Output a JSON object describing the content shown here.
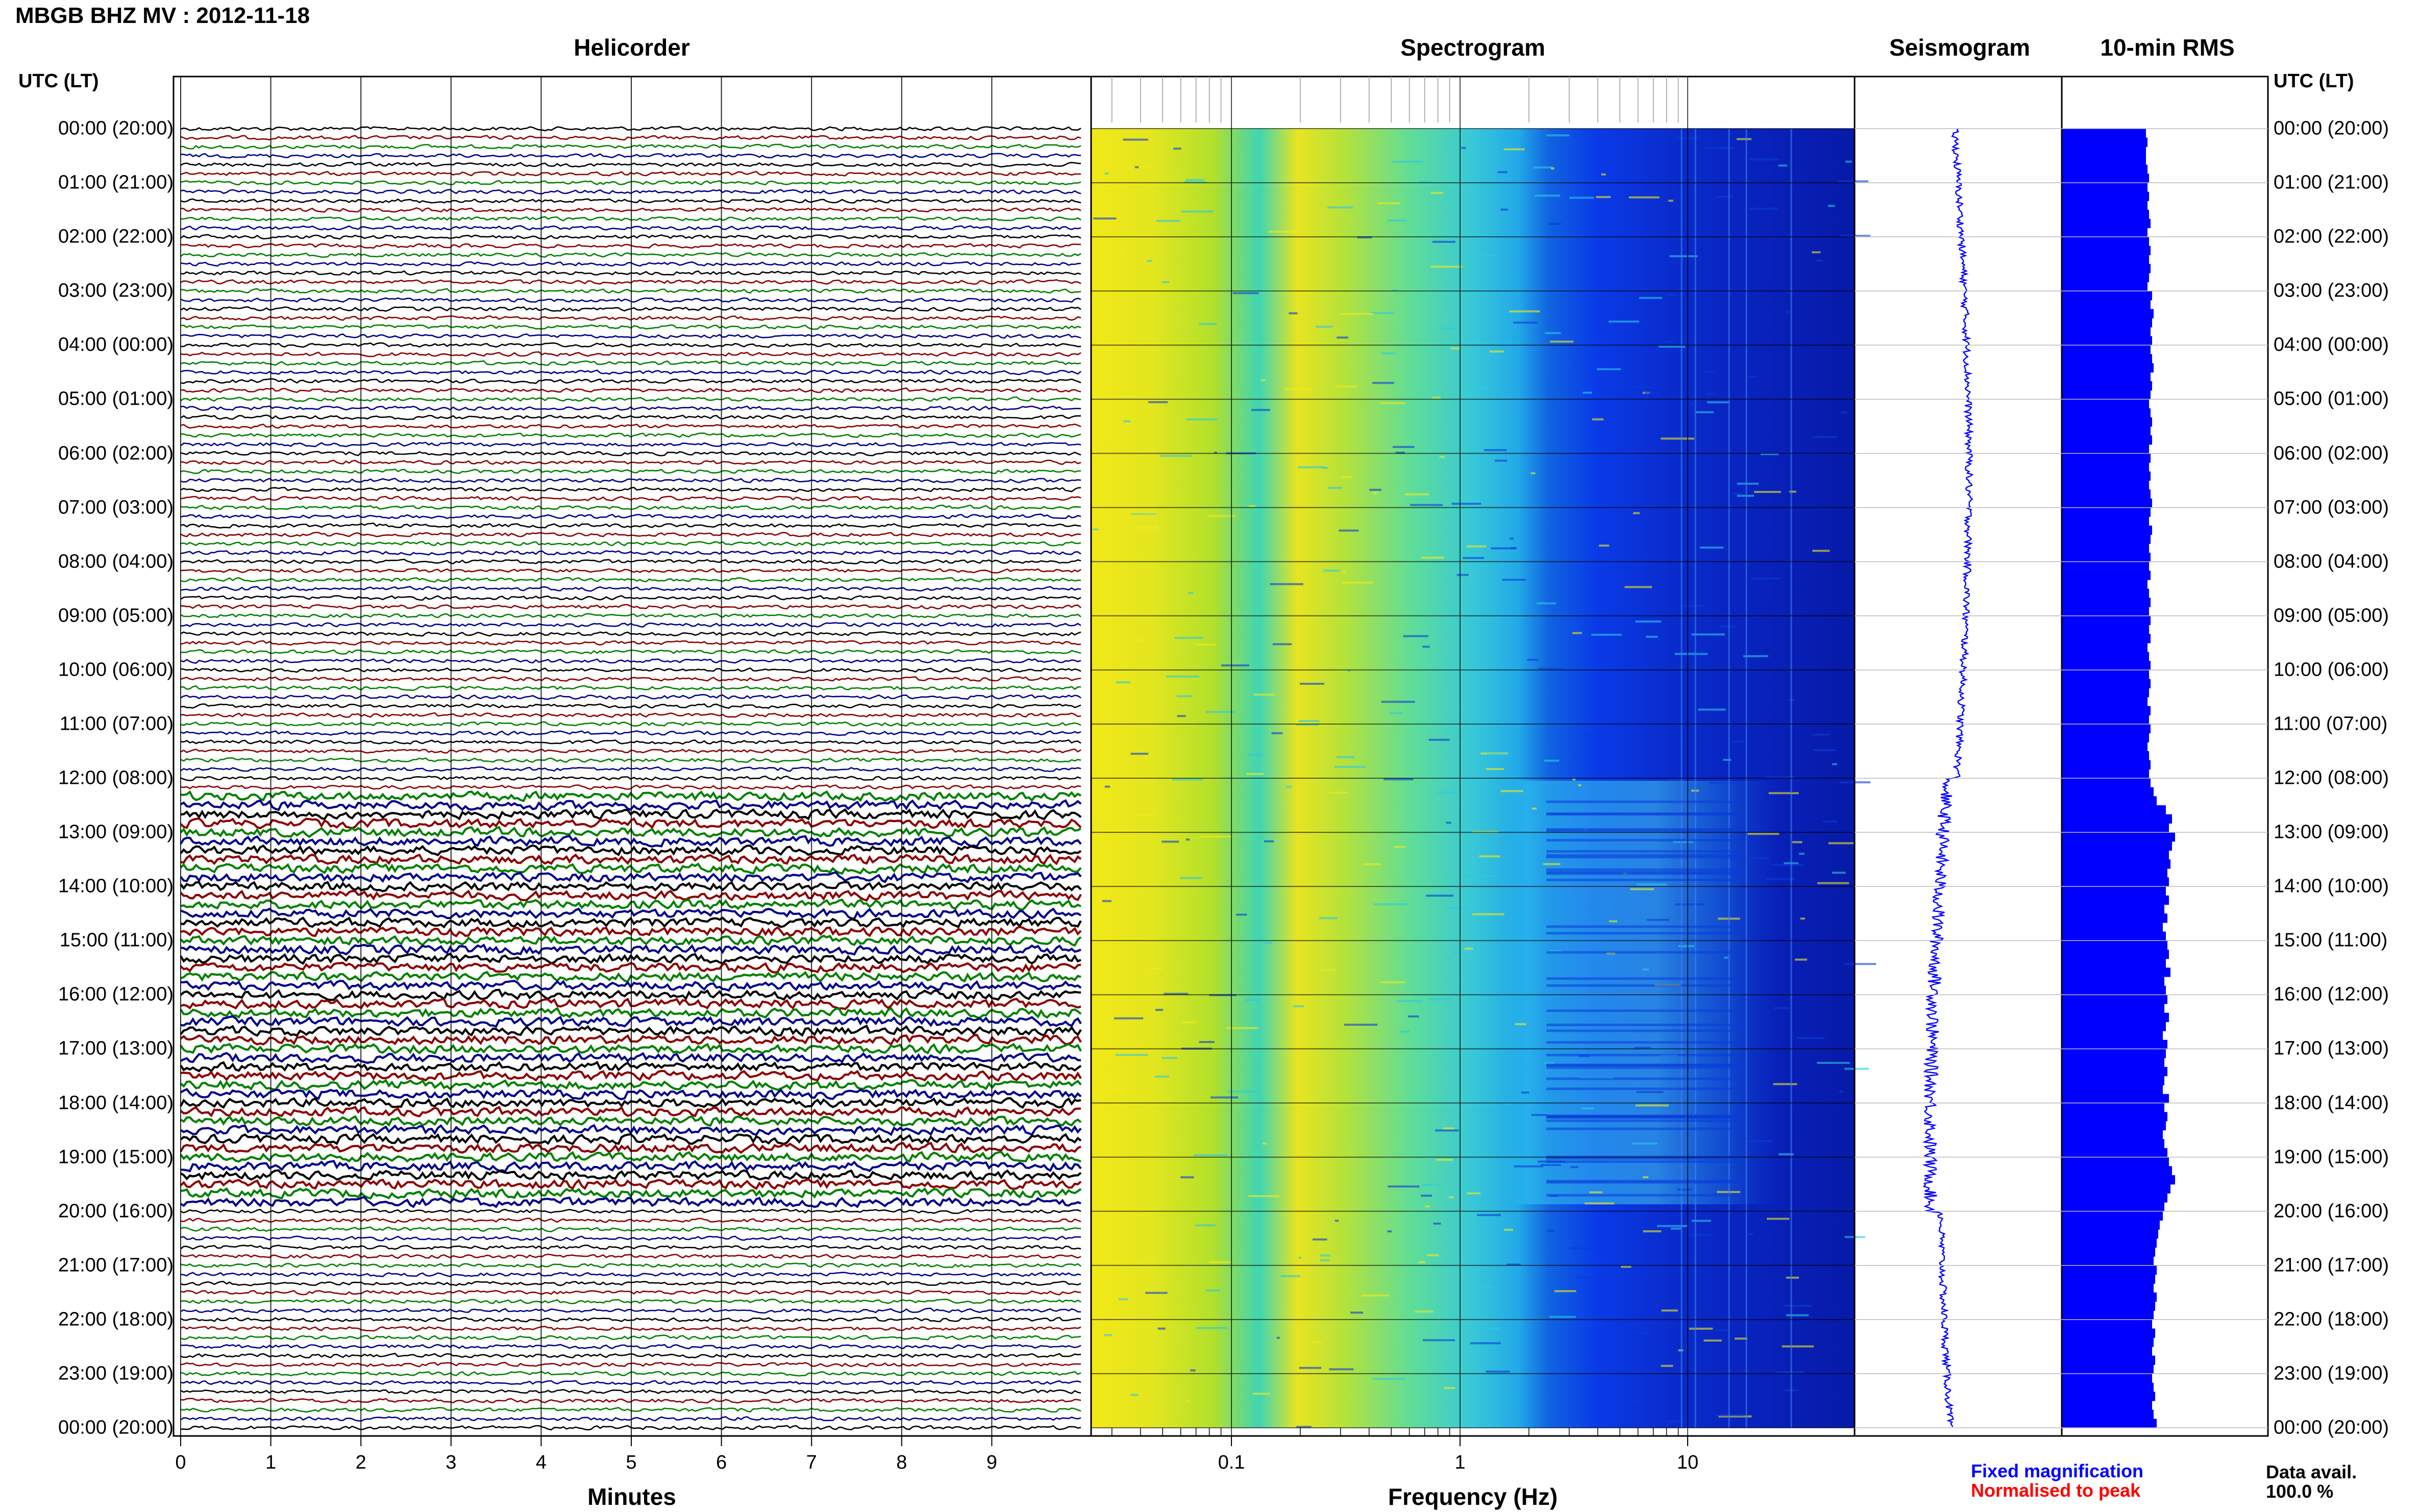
{
  "header": {
    "title": "MBGB BHZ MV : 2012-11-18"
  },
  "panels": {
    "helicorder": "Helicorder",
    "spectrogram": "Spectrogram",
    "seismogram": "Seismogram",
    "rms": "10-min RMS"
  },
  "axes": {
    "time_header_left": "UTC (LT)",
    "time_header_right": "UTC (LT)",
    "minutes_label": "Minutes",
    "frequency_label": "Frequency (Hz)",
    "minutes_ticks": [
      "0",
      "1",
      "2",
      "3",
      "4",
      "5",
      "6",
      "7",
      "8",
      "9"
    ],
    "frequency_ticks": [
      "0.1",
      "1",
      "10"
    ]
  },
  "time_labels": [
    "00:00 (20:00)",
    "01:00 (21:00)",
    "02:00 (22:00)",
    "03:00 (23:00)",
    "04:00 (00:00)",
    "05:00 (01:00)",
    "06:00 (02:00)",
    "07:00 (03:00)",
    "08:00 (04:00)",
    "09:00 (05:00)",
    "10:00 (06:00)",
    "11:00 (07:00)",
    "12:00 (08:00)",
    "13:00 (09:00)",
    "14:00 (10:00)",
    "15:00 (11:00)",
    "16:00 (12:00)",
    "17:00 (13:00)",
    "18:00 (14:00)",
    "19:00 (15:00)",
    "20:00 (16:00)",
    "21:00 (17:00)",
    "22:00 (18:00)",
    "23:00 (19:00)",
    "00:00 (20:00)"
  ],
  "legend": {
    "fixed": "Fixed magnification",
    "normalised": "Normalised to peak",
    "fixed_color": "#0000ff",
    "normalised_color": "#ff0000"
  },
  "data_availability": {
    "label": "Data avail.",
    "value": "100.0 %"
  },
  "colors": {
    "helicorder_traces": [
      "#000000",
      "#8b0000",
      "#008000",
      "#00008b"
    ],
    "seismogram": "#0000ff",
    "rms_bar": "#0000ff"
  },
  "chart_data": [
    {
      "type": "line",
      "name": "helicorder",
      "x_label": "Minutes",
      "x_range": [
        0,
        10
      ],
      "lines_per_hour": 6,
      "hours": 24,
      "high_amplitude_utc_hours": [
        12.33,
        20.0
      ]
    },
    {
      "type": "heatmap",
      "name": "spectrogram",
      "x_label": "Frequency (Hz)",
      "x_scale": "log",
      "x_range": [
        0.02,
        50
      ],
      "tremor_band_hz": [
        2,
        20
      ],
      "tremor_utc_hours": [
        12.0,
        20.0
      ]
    },
    {
      "type": "line",
      "name": "seismogram",
      "color": "#0000ff"
    },
    {
      "type": "bar",
      "name": "10-min RMS",
      "orientation": "horizontal",
      "interval_minutes": 10,
      "values": [
        0.55,
        0.56,
        0.55,
        0.55,
        0.56,
        0.57,
        0.56,
        0.57,
        0.56,
        0.57,
        0.58,
        0.56,
        0.57,
        0.58,
        0.57,
        0.58,
        0.57,
        0.56,
        0.59,
        0.58,
        0.6,
        0.59,
        0.58,
        0.59,
        0.58,
        0.59,
        0.6,
        0.58,
        0.59,
        0.58,
        0.57,
        0.58,
        0.59,
        0.58,
        0.59,
        0.57,
        0.58,
        0.57,
        0.58,
        0.57,
        0.58,
        0.59,
        0.58,
        0.57,
        0.59,
        0.58,
        0.57,
        0.58,
        0.57,
        0.58,
        0.56,
        0.57,
        0.58,
        0.57,
        0.58,
        0.57,
        0.58,
        0.56,
        0.57,
        0.58,
        0.57,
        0.58,
        0.57,
        0.56,
        0.58,
        0.57,
        0.58,
        0.57,
        0.56,
        0.57,
        0.58,
        0.57,
        0.58,
        0.6,
        0.62,
        0.68,
        0.72,
        0.7,
        0.74,
        0.72,
        0.7,
        0.71,
        0.69,
        0.7,
        0.68,
        0.7,
        0.67,
        0.69,
        0.66,
        0.68,
        0.69,
        0.7,
        0.68,
        0.71,
        0.67,
        0.68,
        0.69,
        0.67,
        0.7,
        0.68,
        0.66,
        0.69,
        0.68,
        0.67,
        0.69,
        0.67,
        0.66,
        0.7,
        0.67,
        0.69,
        0.68,
        0.66,
        0.67,
        0.69,
        0.7,
        0.72,
        0.74,
        0.71,
        0.69,
        0.67,
        0.66,
        0.64,
        0.63,
        0.62,
        0.61,
        0.6,
        0.62,
        0.61,
        0.6,
        0.62,
        0.61,
        0.6,
        0.59,
        0.61,
        0.6,
        0.59,
        0.61,
        0.6,
        0.59,
        0.6,
        0.61,
        0.59,
        0.6,
        0.62
      ]
    }
  ]
}
